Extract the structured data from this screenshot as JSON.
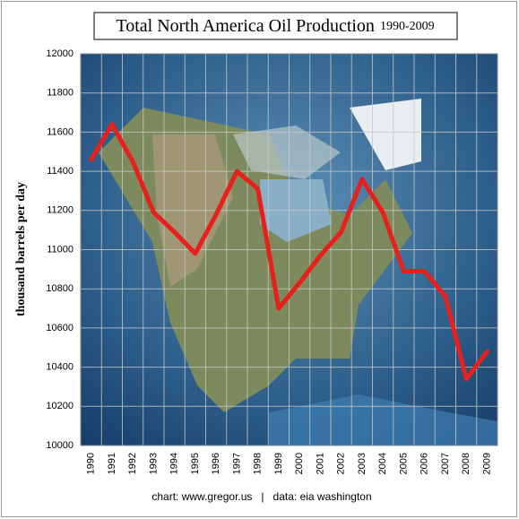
{
  "chart_data": {
    "type": "line",
    "title": "Total North America Oil Production",
    "subtitle": "1990-2009",
    "y_label": "thousand barrels per day",
    "footer": "chart: www.gregor.us   |   data: eia washington",
    "categories": [
      "1990",
      "1991",
      "1992",
      "1993",
      "1994",
      "1995",
      "1996",
      "1997",
      "1998",
      "1999",
      "2000",
      "2001",
      "2002",
      "2003",
      "2004",
      "2005",
      "2006",
      "2007",
      "2008",
      "2009"
    ],
    "values": [
      11460,
      11640,
      11450,
      11190,
      11090,
      10980,
      11180,
      11400,
      11310,
      10700,
      10830,
      10970,
      11090,
      11360,
      11190,
      10890,
      10890,
      10760,
      10340,
      10480
    ],
    "color": "#e8201c",
    "ylim": [
      10000,
      12000
    ],
    "yticks": [
      10000,
      10200,
      10400,
      10600,
      10800,
      11000,
      11200,
      11400,
      11600,
      11800,
      12000
    ],
    "grid": true
  }
}
